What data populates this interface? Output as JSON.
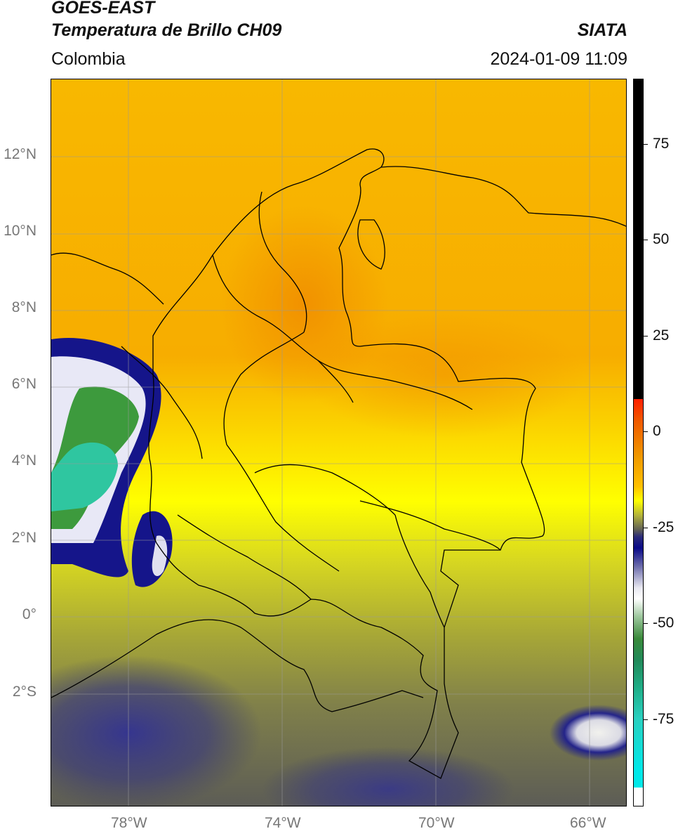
{
  "header": {
    "title_line1": "GOES-EAST",
    "title_line2": "Temperatura de Brillo CH09",
    "organization": "SIATA",
    "region": "Colombia",
    "datetime": "2024-01-09 11:09"
  },
  "map": {
    "lat_labels": [
      "12°N",
      "10°N",
      "8°N",
      "6°N",
      "4°N",
      "2°N",
      "0°",
      "2°S"
    ],
    "lon_labels": [
      "78°W",
      "74°W",
      "70°W",
      "66°W"
    ],
    "colors": {
      "warm_orange": "#f5a000",
      "orange": "#f9b400",
      "yellow": "#ffff00",
      "olive": "#a8a830",
      "gray_olive": "#6e6e4a",
      "dark_blue": "#0a0a80",
      "white_cloud": "#f0f0f8",
      "green": "#3a9a3a",
      "teal": "#2fc6a0",
      "border": "#000000"
    }
  },
  "colorbar": {
    "labels": [
      "75",
      "50",
      "25",
      "0",
      "-25",
      "-50",
      "-75"
    ]
  }
}
